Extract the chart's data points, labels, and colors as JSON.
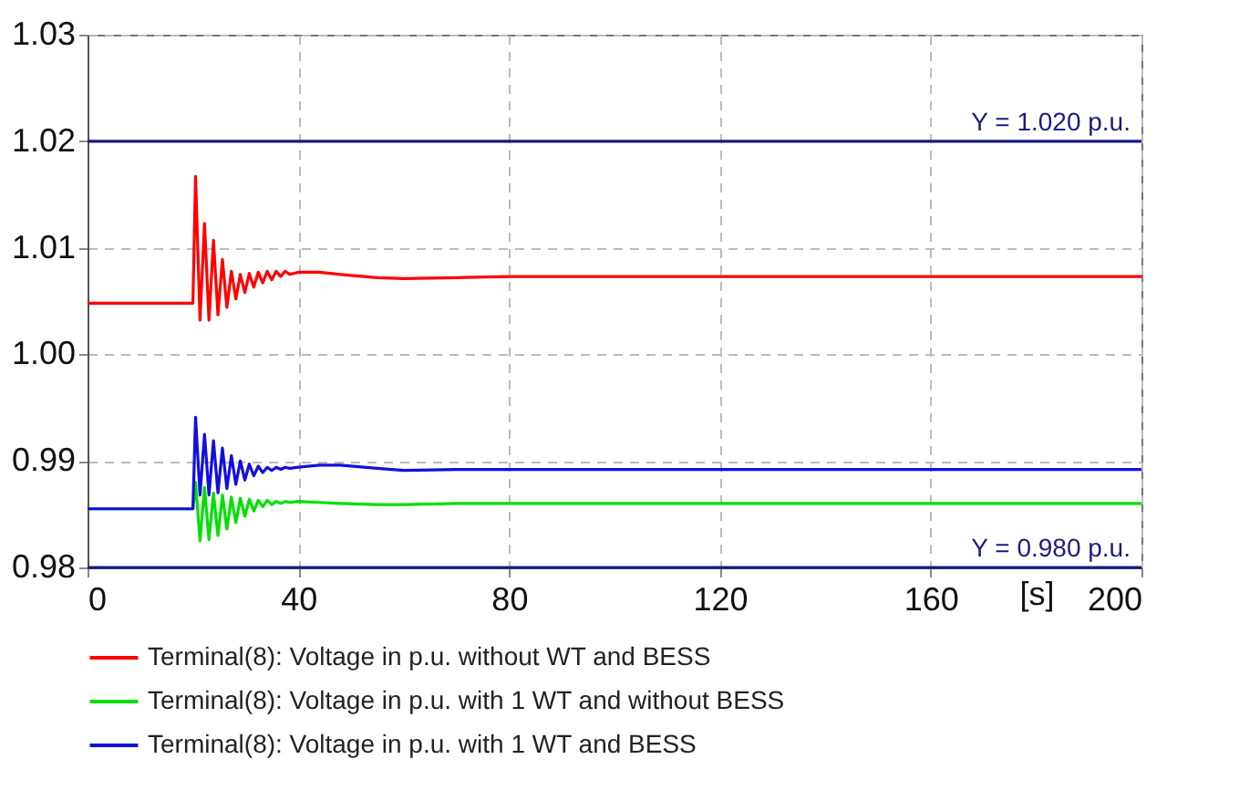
{
  "chart_data": {
    "type": "line",
    "xlabel": "[s]",
    "x": [
      0,
      20,
      20.5,
      21.35,
      22.2,
      23.05,
      23.9,
      24.75,
      25.6,
      26.45,
      27.3,
      28.15,
      29.0,
      29.85,
      30.7,
      31.55,
      32.4,
      33.25,
      34.1,
      34.95,
      35.8,
      36.65,
      37.5,
      38.35,
      40,
      44,
      48,
      55,
      60,
      70,
      80,
      200
    ],
    "series": [
      {
        "name": "Terminal(8): Voltage in p.u. without WT and BESS",
        "color": "#ff0000",
        "values": [
          1.0048,
          1.0048,
          1.0167,
          1.0032,
          1.0123,
          1.0032,
          1.0107,
          1.0037,
          1.0089,
          1.0044,
          1.0078,
          1.0052,
          1.0075,
          1.0058,
          1.0076,
          1.0063,
          1.0077,
          1.0067,
          1.0078,
          1.007,
          1.0078,
          1.0073,
          1.0078,
          1.0075,
          1.0077,
          1.0077,
          1.0075,
          1.0072,
          1.0071,
          1.0072,
          1.0073,
          1.0073
        ]
      },
      {
        "name": "Terminal(8): Voltage in p.u. with 1 WT and without BESS",
        "color": "#00e000",
        "values": [
          0.9855,
          0.9855,
          0.988,
          0.9825,
          0.9875,
          0.9826,
          0.987,
          0.983,
          0.9868,
          0.9836,
          0.9866,
          0.9842,
          0.9865,
          0.9848,
          0.9864,
          0.9853,
          0.9863,
          0.9857,
          0.9863,
          0.9859,
          0.9862,
          0.986,
          0.9862,
          0.9861,
          0.9862,
          0.9861,
          0.986,
          0.9859,
          0.9859,
          0.986,
          0.986,
          0.986
        ]
      },
      {
        "name": "Terminal(8): Voltage in p.u. with 1 WT and BESS",
        "color": "#1010e0",
        "values": [
          0.9855,
          0.9855,
          0.9941,
          0.9868,
          0.9925,
          0.9868,
          0.9919,
          0.987,
          0.9912,
          0.9874,
          0.9905,
          0.9878,
          0.99,
          0.9882,
          0.9897,
          0.9886,
          0.9895,
          0.9889,
          0.9894,
          0.9891,
          0.9894,
          0.9892,
          0.9894,
          0.9893,
          0.9894,
          0.9896,
          0.9896,
          0.9893,
          0.9891,
          0.9892,
          0.9892,
          0.9892
        ]
      }
    ],
    "ref_lines": [
      {
        "axis": "y",
        "value": 1.02,
        "label": "Y =  1.020 p.u.",
        "color": "#1a1a80"
      },
      {
        "axis": "y",
        "value": 0.98,
        "label": "Y =  0.980 p.u.",
        "color": "#1a1a80"
      }
    ],
    "xlim": [
      0,
      200
    ],
    "xticks": [
      0,
      40,
      80,
      120,
      160,
      200
    ],
    "ylim": [
      0.98,
      1.03
    ],
    "yticks": [
      0.98,
      0.99,
      {
        "value": 1.0,
        "label": "1.00"
      },
      1.01,
      1.02,
      1.03
    ],
    "grid": true,
    "legend": "bottom",
    "line_style": "solid"
  }
}
